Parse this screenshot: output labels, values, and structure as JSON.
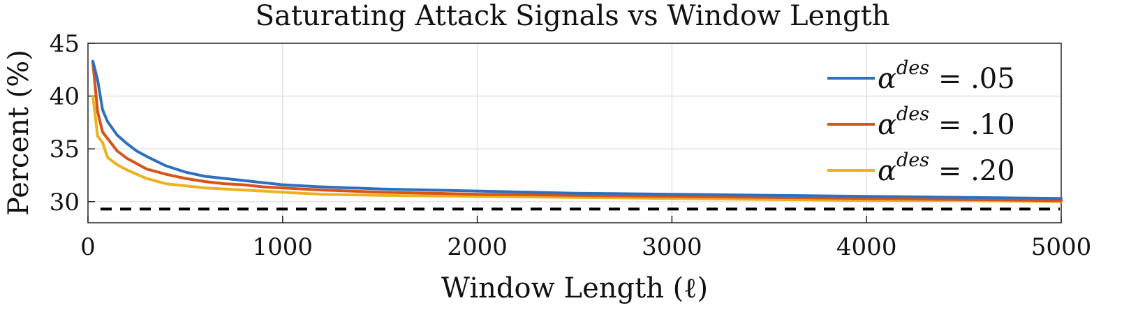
{
  "chart_data": {
    "type": "line",
    "title": "Saturating Attack Signals vs Window Length",
    "xlabel": "Window Length (ℓ)",
    "ylabel": "Percent (%)",
    "xlim": [
      0,
      5000
    ],
    "ylim": [
      28,
      45
    ],
    "xticks": [
      0,
      1000,
      2000,
      3000,
      4000,
      5000
    ],
    "yticks": [
      30,
      35,
      40,
      45
    ],
    "grid": true,
    "legend_position": "top-right",
    "reference_line": {
      "y": 29.3,
      "style": "dashed",
      "color": "#000000"
    },
    "series": [
      {
        "name": "αdes = .05",
        "legend": {
          "symbol": "α",
          "sup": "des",
          "rest": " = .05"
        },
        "color": "#2E6FBF",
        "x": [
          25,
          50,
          75,
          100,
          150,
          200,
          250,
          300,
          400,
          500,
          600,
          700,
          800,
          900,
          1000,
          1200,
          1500,
          2000,
          2500,
          3000,
          3500,
          4000,
          4500,
          5000
        ],
        "y": [
          43.3,
          41.5,
          38.7,
          37.6,
          36.3,
          35.5,
          34.8,
          34.3,
          33.4,
          32.8,
          32.4,
          32.2,
          32.0,
          31.8,
          31.6,
          31.4,
          31.2,
          31.0,
          30.8,
          30.7,
          30.6,
          30.5,
          30.4,
          30.3
        ]
      },
      {
        "name": "αdes = .10",
        "legend": {
          "symbol": "α",
          "sup": "des",
          "rest": " = .10"
        },
        "color": "#D95319",
        "x": [
          25,
          50,
          75,
          100,
          150,
          200,
          250,
          300,
          400,
          500,
          600,
          700,
          800,
          900,
          1000,
          1200,
          1500,
          2000,
          2500,
          3000,
          3500,
          4000,
          4500,
          5000
        ],
        "y": [
          43.2,
          38.5,
          36.6,
          36.0,
          34.8,
          34.1,
          33.6,
          33.1,
          32.6,
          32.2,
          31.9,
          31.7,
          31.6,
          31.4,
          31.3,
          31.1,
          30.9,
          30.7,
          30.6,
          30.5,
          30.4,
          30.3,
          30.2,
          30.1
        ]
      },
      {
        "name": "αdes = .20",
        "legend": {
          "symbol": "α",
          "sup": "des",
          "rest": " = .20"
        },
        "color": "#EDB120",
        "x": [
          25,
          50,
          75,
          100,
          150,
          200,
          250,
          300,
          400,
          500,
          600,
          700,
          800,
          900,
          1000,
          1200,
          1500,
          2000,
          2500,
          3000,
          3500,
          4000,
          4500,
          5000
        ],
        "y": [
          40.0,
          36.2,
          35.6,
          34.2,
          33.5,
          33.0,
          32.6,
          32.2,
          31.7,
          31.5,
          31.3,
          31.2,
          31.1,
          31.0,
          30.9,
          30.7,
          30.6,
          30.5,
          30.4,
          30.3,
          30.2,
          30.1,
          30.1,
          30.0
        ]
      }
    ]
  }
}
